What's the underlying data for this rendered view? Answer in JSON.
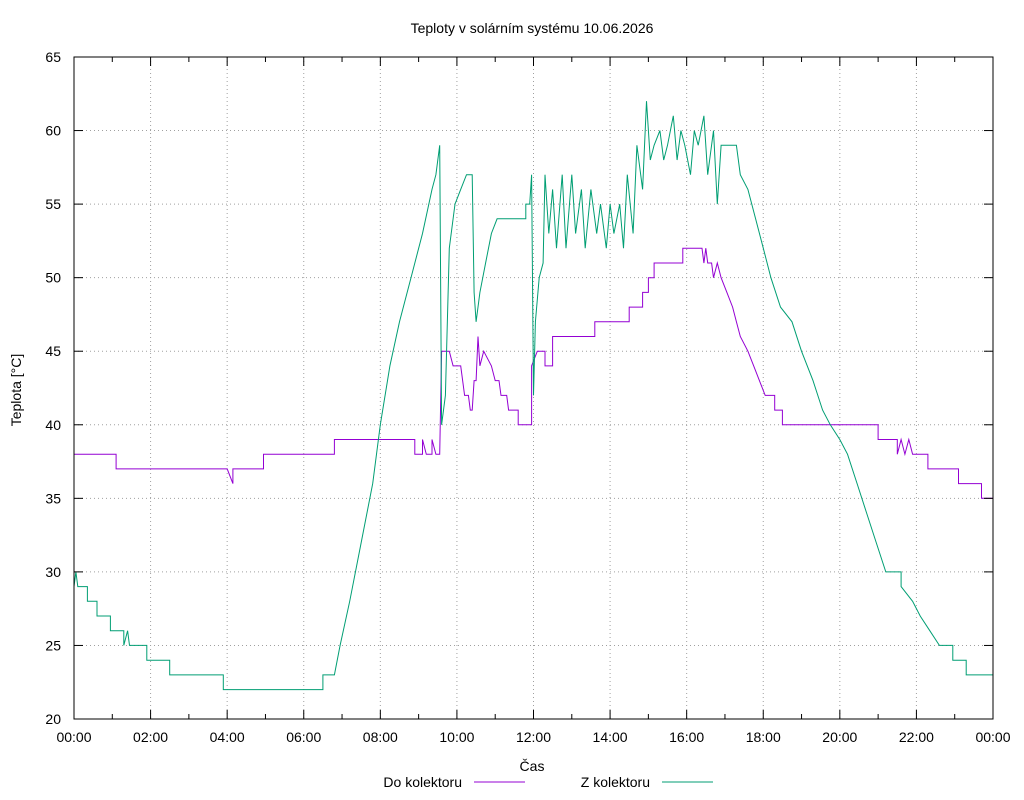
{
  "chart_data": {
    "type": "line",
    "title": "Teploty v solárním systému 10.06.2026",
    "xlabel": "Čas",
    "ylabel": "Teplota [°C]",
    "xlim": [
      0,
      24
    ],
    "ylim": [
      20,
      65
    ],
    "grid": true,
    "legend_position": "bottom-center",
    "x_ticks": [
      {
        "value": 0,
        "label": "00:00"
      },
      {
        "value": 2,
        "label": "02:00"
      },
      {
        "value": 4,
        "label": "04:00"
      },
      {
        "value": 6,
        "label": "06:00"
      },
      {
        "value": 8,
        "label": "08:00"
      },
      {
        "value": 10,
        "label": "10:00"
      },
      {
        "value": 12,
        "label": "12:00"
      },
      {
        "value": 14,
        "label": "14:00"
      },
      {
        "value": 16,
        "label": "16:00"
      },
      {
        "value": 18,
        "label": "18:00"
      },
      {
        "value": 20,
        "label": "20:00"
      },
      {
        "value": 22,
        "label": "22:00"
      },
      {
        "value": 24,
        "label": "00:00"
      }
    ],
    "y_ticks": [
      {
        "value": 20,
        "label": "20"
      },
      {
        "value": 25,
        "label": "25"
      },
      {
        "value": 30,
        "label": "30"
      },
      {
        "value": 35,
        "label": "35"
      },
      {
        "value": 40,
        "label": "40"
      },
      {
        "value": 45,
        "label": "45"
      },
      {
        "value": 50,
        "label": "50"
      },
      {
        "value": 55,
        "label": "55"
      },
      {
        "value": 60,
        "label": "60"
      },
      {
        "value": 65,
        "label": "65"
      }
    ],
    "series": [
      {
        "name": "Do kolektoru",
        "color": "#9400d3",
        "points": [
          [
            0.0,
            38
          ],
          [
            1.1,
            38
          ],
          [
            1.1,
            37
          ],
          [
            4.0,
            37
          ],
          [
            4.15,
            36
          ],
          [
            4.15,
            37
          ],
          [
            4.95,
            37
          ],
          [
            4.95,
            38
          ],
          [
            6.8,
            38
          ],
          [
            6.8,
            39
          ],
          [
            8.9,
            39
          ],
          [
            8.9,
            38
          ],
          [
            9.1,
            38
          ],
          [
            9.1,
            39
          ],
          [
            9.2,
            38
          ],
          [
            9.35,
            38
          ],
          [
            9.35,
            39
          ],
          [
            9.45,
            38
          ],
          [
            9.55,
            38
          ],
          [
            9.6,
            45
          ],
          [
            9.8,
            45
          ],
          [
            9.9,
            44
          ],
          [
            10.1,
            44
          ],
          [
            10.2,
            42
          ],
          [
            10.3,
            42
          ],
          [
            10.35,
            41
          ],
          [
            10.4,
            41
          ],
          [
            10.45,
            43
          ],
          [
            10.5,
            43
          ],
          [
            10.55,
            46
          ],
          [
            10.6,
            44
          ],
          [
            10.7,
            45
          ],
          [
            10.9,
            44
          ],
          [
            11.0,
            43
          ],
          [
            11.1,
            43
          ],
          [
            11.15,
            42
          ],
          [
            11.3,
            42
          ],
          [
            11.35,
            41
          ],
          [
            11.6,
            41
          ],
          [
            11.6,
            40
          ],
          [
            11.95,
            40
          ],
          [
            11.95,
            44
          ],
          [
            12.1,
            45
          ],
          [
            12.3,
            45
          ],
          [
            12.3,
            44
          ],
          [
            12.5,
            44
          ],
          [
            12.5,
            46
          ],
          [
            13.6,
            46
          ],
          [
            13.6,
            47
          ],
          [
            14.5,
            47
          ],
          [
            14.5,
            48
          ],
          [
            14.85,
            48
          ],
          [
            14.85,
            49
          ],
          [
            15.0,
            49
          ],
          [
            15.0,
            50
          ],
          [
            15.15,
            50
          ],
          [
            15.15,
            51
          ],
          [
            15.9,
            51
          ],
          [
            15.9,
            52
          ],
          [
            16.4,
            52
          ],
          [
            16.45,
            51
          ],
          [
            16.5,
            52
          ],
          [
            16.55,
            51
          ],
          [
            16.65,
            51
          ],
          [
            16.7,
            50
          ],
          [
            16.8,
            51
          ],
          [
            16.9,
            50
          ],
          [
            17.05,
            49
          ],
          [
            17.2,
            48
          ],
          [
            17.3,
            47
          ],
          [
            17.4,
            46
          ],
          [
            17.6,
            45
          ],
          [
            17.75,
            44
          ],
          [
            17.9,
            43
          ],
          [
            18.05,
            42
          ],
          [
            18.3,
            42
          ],
          [
            18.3,
            41
          ],
          [
            18.5,
            41
          ],
          [
            18.5,
            40
          ],
          [
            21.0,
            40
          ],
          [
            21.0,
            39
          ],
          [
            21.5,
            39
          ],
          [
            21.5,
            38
          ],
          [
            21.6,
            39
          ],
          [
            21.7,
            38
          ],
          [
            21.8,
            39
          ],
          [
            21.9,
            38
          ],
          [
            22.3,
            38
          ],
          [
            22.3,
            37
          ],
          [
            23.1,
            37
          ],
          [
            23.1,
            36
          ],
          [
            23.7,
            36
          ],
          [
            23.7,
            35
          ],
          [
            24.0,
            35
          ]
        ]
      },
      {
        "name": "Z kolektoru",
        "color": "#009e73",
        "points": [
          [
            0.0,
            29
          ],
          [
            0.05,
            30
          ],
          [
            0.1,
            29
          ],
          [
            0.35,
            29
          ],
          [
            0.35,
            28
          ],
          [
            0.6,
            28
          ],
          [
            0.6,
            27
          ],
          [
            0.95,
            27
          ],
          [
            0.95,
            26
          ],
          [
            1.3,
            26
          ],
          [
            1.3,
            25
          ],
          [
            1.4,
            26
          ],
          [
            1.45,
            25
          ],
          [
            1.9,
            25
          ],
          [
            1.9,
            24
          ],
          [
            2.5,
            24
          ],
          [
            2.5,
            23
          ],
          [
            3.9,
            23
          ],
          [
            3.9,
            22
          ],
          [
            6.5,
            22
          ],
          [
            6.5,
            23
          ],
          [
            6.8,
            23
          ],
          [
            6.95,
            25
          ],
          [
            7.2,
            28
          ],
          [
            7.5,
            32
          ],
          [
            7.8,
            36
          ],
          [
            8.0,
            40
          ],
          [
            8.25,
            44
          ],
          [
            8.5,
            47
          ],
          [
            8.8,
            50
          ],
          [
            9.1,
            53
          ],
          [
            9.35,
            56
          ],
          [
            9.45,
            57
          ],
          [
            9.55,
            59
          ],
          [
            9.6,
            40
          ],
          [
            9.7,
            42
          ],
          [
            9.8,
            52
          ],
          [
            9.95,
            55
          ],
          [
            10.1,
            56
          ],
          [
            10.25,
            57
          ],
          [
            10.4,
            57
          ],
          [
            10.45,
            49
          ],
          [
            10.5,
            47
          ],
          [
            10.6,
            49
          ],
          [
            10.75,
            51
          ],
          [
            10.9,
            53
          ],
          [
            11.05,
            54
          ],
          [
            11.8,
            54
          ],
          [
            11.8,
            55
          ],
          [
            11.9,
            55
          ],
          [
            11.95,
            57
          ],
          [
            12.0,
            42
          ],
          [
            12.05,
            47
          ],
          [
            12.15,
            50
          ],
          [
            12.25,
            51
          ],
          [
            12.3,
            57
          ],
          [
            12.4,
            53
          ],
          [
            12.5,
            56
          ],
          [
            12.6,
            52
          ],
          [
            12.75,
            57
          ],
          [
            12.85,
            52
          ],
          [
            13.0,
            57
          ],
          [
            13.1,
            53
          ],
          [
            13.25,
            56
          ],
          [
            13.35,
            52
          ],
          [
            13.5,
            56
          ],
          [
            13.65,
            53
          ],
          [
            13.75,
            55
          ],
          [
            13.9,
            52
          ],
          [
            14.0,
            55
          ],
          [
            14.1,
            53
          ],
          [
            14.25,
            55
          ],
          [
            14.35,
            52
          ],
          [
            14.45,
            57
          ],
          [
            14.6,
            53
          ],
          [
            14.7,
            59
          ],
          [
            14.85,
            56
          ],
          [
            14.95,
            62
          ],
          [
            15.05,
            58
          ],
          [
            15.15,
            59
          ],
          [
            15.3,
            60
          ],
          [
            15.4,
            58
          ],
          [
            15.5,
            59
          ],
          [
            15.65,
            61
          ],
          [
            15.75,
            58
          ],
          [
            15.85,
            60
          ],
          [
            15.95,
            59
          ],
          [
            16.1,
            57
          ],
          [
            16.2,
            60
          ],
          [
            16.3,
            59
          ],
          [
            16.45,
            61
          ],
          [
            16.55,
            57
          ],
          [
            16.7,
            60
          ],
          [
            16.8,
            55
          ],
          [
            16.9,
            59
          ],
          [
            17.3,
            59
          ],
          [
            17.4,
            57
          ],
          [
            17.6,
            56
          ],
          [
            17.8,
            54
          ],
          [
            18.0,
            52
          ],
          [
            18.2,
            50
          ],
          [
            18.45,
            48
          ],
          [
            18.75,
            47
          ],
          [
            19.0,
            45
          ],
          [
            19.3,
            43
          ],
          [
            19.55,
            41
          ],
          [
            19.75,
            40
          ],
          [
            20.0,
            39
          ],
          [
            20.2,
            38
          ],
          [
            20.45,
            36
          ],
          [
            20.7,
            34
          ],
          [
            20.95,
            32
          ],
          [
            21.2,
            30
          ],
          [
            21.6,
            30
          ],
          [
            21.6,
            29
          ],
          [
            21.9,
            28
          ],
          [
            22.1,
            27
          ],
          [
            22.35,
            26
          ],
          [
            22.6,
            25
          ],
          [
            22.95,
            25
          ],
          [
            22.95,
            24
          ],
          [
            23.3,
            24
          ],
          [
            23.3,
            23
          ],
          [
            24.0,
            23
          ]
        ]
      }
    ]
  }
}
